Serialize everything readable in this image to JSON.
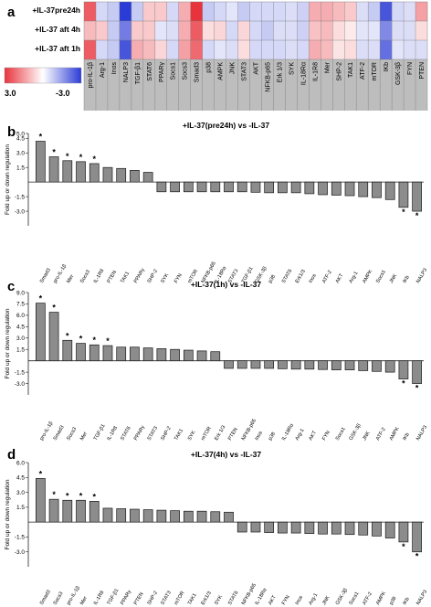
{
  "panel_labels": [
    "a",
    "b",
    "c",
    "d"
  ],
  "legend": {
    "max_label": "3.0",
    "min_label": "-3.0",
    "high_color": "#e8333c",
    "low_color": "#2b3bd6"
  },
  "heatmap": {
    "rows": [
      "+IL-37pre24h",
      "+IL-37 aft 4h",
      "+IL-37 aft 1h"
    ],
    "columns": [
      "pro-IL-1β",
      "Arg-1",
      "Inos",
      "NALP3",
      "TGF-β1",
      "STAT6",
      "PPARγ",
      "Socs1",
      "Socs3",
      "Smad3",
      "p38",
      "AMPK",
      "JNK",
      "STAT3",
      "AKT",
      "NFKB-p65",
      "Erk 1/3",
      "SYK",
      "IL-18Rα",
      "IL-1R8",
      "Mer",
      "SHP-2",
      "TAK1",
      "ATF-2",
      "mTOR",
      "IKb",
      "GSK-3β",
      "FYN",
      "PTEN"
    ],
    "values": [
      [
        2.4,
        -0.6,
        -0.8,
        -3.0,
        -0.8,
        0.8,
        0.8,
        -0.6,
        1.2,
        3.0,
        -0.8,
        -0.6,
        -0.4,
        -0.8,
        -0.6,
        -0.6,
        -0.6,
        -0.5,
        -0.7,
        1.2,
        1.2,
        1.0,
        0.8,
        -0.5,
        -0.8,
        -2.6,
        -0.6,
        -0.5,
        1.4
      ],
      [
        1.0,
        0.8,
        -0.8,
        -2.0,
        0.8,
        0.8,
        -0.4,
        -0.5,
        1.2,
        2.4,
        0.5,
        0.6,
        -0.6,
        0.6,
        -0.6,
        -0.8,
        -0.5,
        -0.5,
        -0.7,
        0.9,
        1.0,
        0.5,
        0.3,
        -0.4,
        -0.4,
        -1.8,
        -0.5,
        -0.5,
        0.5
      ],
      [
        2.4,
        -0.6,
        -0.8,
        -2.6,
        1.2,
        1.0,
        0.6,
        -0.6,
        1.4,
        2.2,
        -0.6,
        -0.4,
        -0.5,
        0.5,
        -0.6,
        -0.6,
        -0.6,
        -0.5,
        -0.6,
        1.2,
        1.0,
        0.4,
        0.5,
        -0.5,
        -0.5,
        -2.2,
        -0.4,
        -0.5,
        -0.5
      ]
    ]
  },
  "y_axis_label": "Fold up or down regulation",
  "chart_data": [
    {
      "type": "bar",
      "title": "+IL-37(pre24h) vs -IL-37",
      "ylabel": "Fold up or down regulation",
      "ylim": [
        -4.5,
        5.0
      ],
      "yticks": [
        "-3.0",
        "-1.5",
        "1.5",
        "3.0",
        "4.5",
        "5.0"
      ],
      "categories": [
        "Smad3",
        "pro-IL-1β",
        "Mer",
        "Socs3",
        "IL-1R8",
        "PTEN",
        "TAK1",
        "PPARγ",
        "SHP-2",
        "SYK",
        "FYN",
        "mTOR",
        "NFKB-p65",
        "IL-18Rα",
        "STAT3",
        "TGF-β1",
        "GSK-3β",
        "p38",
        "STAT6",
        "Erk1/3",
        "Inos",
        "ATF-2",
        "AKT",
        "Arg-1",
        "AMPK",
        "Socs1",
        "JNK",
        "IKb",
        "NALP3"
      ],
      "values": [
        4.2,
        2.6,
        2.2,
        2.1,
        1.9,
        1.5,
        1.4,
        1.2,
        1.0,
        -1.0,
        -1.0,
        -1.0,
        -1.0,
        -1.0,
        -1.0,
        -1.0,
        -1.05,
        -1.1,
        -1.1,
        -1.1,
        -1.2,
        -1.3,
        -1.35,
        -1.4,
        -1.5,
        -1.6,
        -1.8,
        -2.6,
        -3.0
      ],
      "stars": [
        0,
        1,
        2,
        3,
        4,
        27,
        28
      ]
    },
    {
      "type": "bar",
      "title": "+IL-37(1h) vs -IL-37",
      "ylabel": "Fold up or down regulation",
      "ylim": [
        -4.5,
        9.0
      ],
      "yticks": [
        "-3.0",
        "-1.5",
        "1.5",
        "3.0",
        "4.5",
        "6.0",
        "7.5",
        "9.0"
      ],
      "categories": [
        "pro-IL-1β",
        "Smad3",
        "Socs3",
        "Mer",
        "TGF-β1",
        "IL-1R8",
        "STAT6",
        "PPARγ",
        "STAT3",
        "SHP-2",
        "TAK1",
        "SYK",
        "mTOR",
        "Erk 1/3",
        "PTEN",
        "NFKB-p65",
        "Inos",
        "p38",
        "IL-18Rα",
        "Arg-1",
        "AKT",
        "FYN",
        "Socs1",
        "GSK-3β",
        "JNK",
        "ATF-2",
        "AMPK",
        "IKb",
        "NALP3"
      ],
      "values": [
        7.6,
        6.4,
        2.7,
        2.3,
        2.1,
        2.0,
        1.8,
        1.8,
        1.7,
        1.6,
        1.5,
        1.4,
        1.3,
        1.2,
        -1.0,
        -1.0,
        -1.0,
        -1.0,
        -1.05,
        -1.1,
        -1.1,
        -1.15,
        -1.2,
        -1.2,
        -1.3,
        -1.4,
        -1.5,
        -2.4,
        -3.0
      ],
      "stars": [
        0,
        1,
        2,
        3,
        4,
        5,
        27,
        28
      ]
    },
    {
      "type": "bar",
      "title": "+IL-37(4h) vs -IL-37",
      "ylabel": "Fold up or down regulation",
      "ylim": [
        -4.5,
        6.0
      ],
      "yticks": [
        "-3.0",
        "-1.5",
        "1.5",
        "3.0",
        "4.5",
        "6.0"
      ],
      "categories": [
        "Smad3",
        "Socs3",
        "pro-IL-1β",
        "Mer",
        "IL-1R8",
        "TGF-β1",
        "PPARγ",
        "PTEN",
        "SHP-2",
        "STAT3",
        "mTOR",
        "TAK1",
        "Erk1/3",
        "SYK",
        "STAT6",
        "NFKB-p65",
        "IL-18Rα",
        "AKT",
        "FYN",
        "Inos",
        "Arg-1",
        "JNK",
        "GSK-3β",
        "Socs1",
        "ATF-2",
        "AMPK",
        "p38",
        "IKb",
        "NALP3"
      ],
      "values": [
        4.4,
        2.3,
        2.2,
        2.2,
        2.1,
        1.4,
        1.35,
        1.3,
        1.25,
        1.2,
        1.15,
        1.1,
        1.1,
        1.05,
        1.0,
        -1.0,
        -1.0,
        -1.05,
        -1.1,
        -1.1,
        -1.15,
        -1.2,
        -1.2,
        -1.25,
        -1.3,
        -1.4,
        -1.6,
        -2.0,
        -3.0
      ],
      "stars": [
        0,
        1,
        2,
        3,
        4,
        27,
        28
      ]
    }
  ]
}
